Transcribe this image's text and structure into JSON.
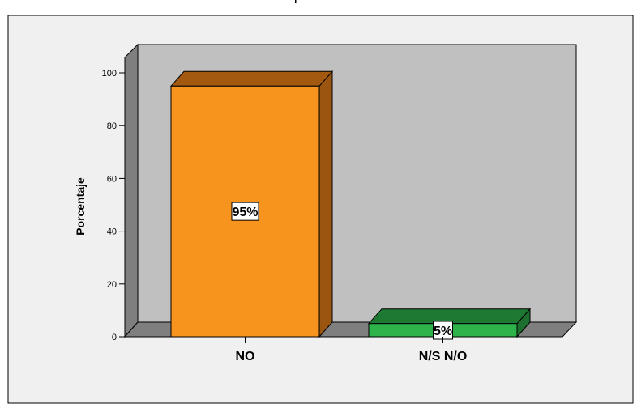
{
  "chart_data": {
    "type": "bar",
    "title": "",
    "xlabel": "",
    "ylabel": "Porcentaje",
    "ylim": [
      0,
      100
    ],
    "yticks": [
      0,
      20,
      40,
      60,
      80,
      100
    ],
    "categories": [
      "NO",
      "N/S N/O"
    ],
    "values": [
      95,
      5
    ],
    "data_labels": [
      "95%",
      "5%"
    ],
    "colors": {
      "bars": [
        "#f7941d",
        "#2db34a"
      ],
      "bar_tops": [
        "#a35a10",
        "#1e7a33"
      ],
      "bar_sides": [
        "#9a5510",
        "#1c6f2f"
      ],
      "back_wall": "#c0c0c0",
      "side_wall": "#7f7f7f",
      "floor": "#7f7f7f",
      "panel": "#f0f0f0"
    },
    "grid": false,
    "legend": "none"
  }
}
